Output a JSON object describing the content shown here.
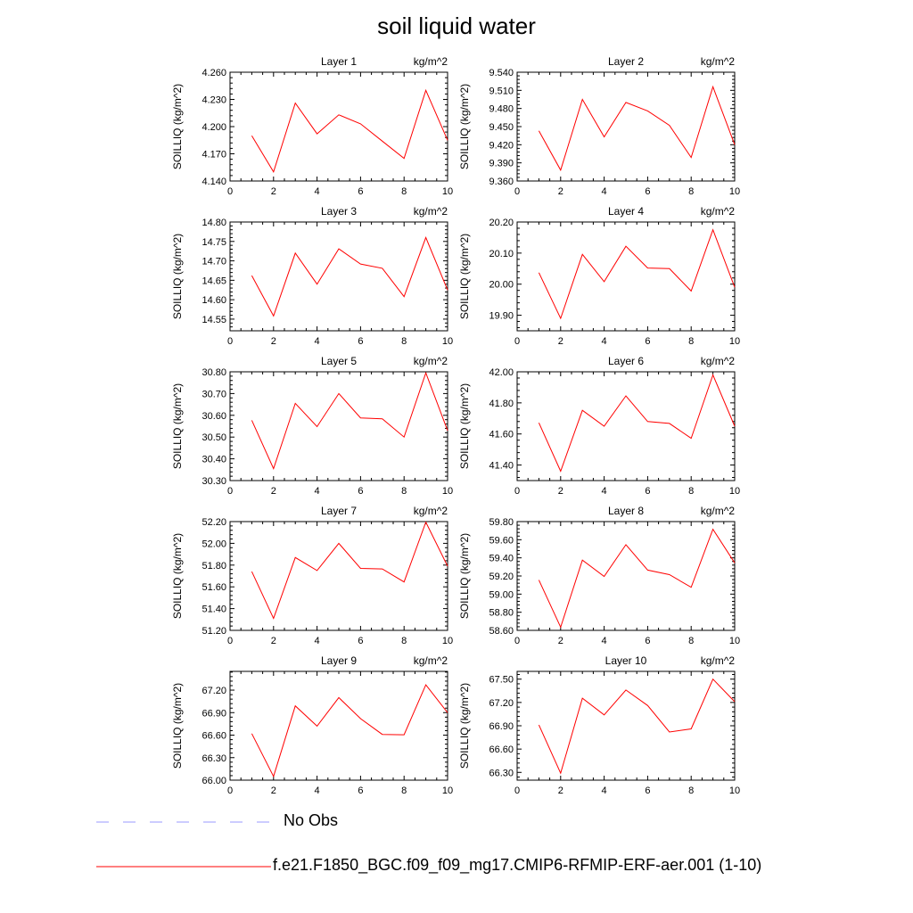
{
  "page": {
    "title": "soil liquid water"
  },
  "legend": [
    {
      "label": "No Obs",
      "color": "#9999ff",
      "dash": "dashed"
    },
    {
      "label": "f.e21.F1850_BGC.f09_f09_mg17.CMIP6-RFMIP-ERF-aer.001 (1-10)",
      "color": "#ff0000",
      "dash": "solid"
    }
  ],
  "chart_data": [
    {
      "type": "line",
      "title": "Layer 1",
      "units": "kg/m^2",
      "ylabel": "SOILLIQ  (kg/m^2)",
      "xlim": [
        0,
        10
      ],
      "ylim": [
        4.14,
        4.26
      ],
      "xticks": [
        "0",
        "2",
        "4",
        "6",
        "8",
        "10"
      ],
      "yticks": [
        "4.140",
        "4.170",
        "4.200",
        "4.230",
        "4.260"
      ],
      "x": [
        1,
        2,
        3,
        4,
        5,
        6,
        7,
        8,
        9,
        10
      ],
      "series": [
        {
          "values": [
            4.19,
            4.15,
            4.226,
            4.192,
            4.213,
            4.203,
            4.184,
            4.165,
            4.24,
            4.185
          ]
        }
      ]
    },
    {
      "type": "line",
      "title": "Layer 2",
      "units": "kg/m^2",
      "ylabel": "SOILLIQ  (kg/m^2)",
      "xlim": [
        0,
        10
      ],
      "ylim": [
        9.36,
        9.54
      ],
      "xticks": [
        "0",
        "2",
        "4",
        "6",
        "8",
        "10"
      ],
      "yticks": [
        "9.360",
        "9.390",
        "9.420",
        "9.450",
        "9.480",
        "9.510",
        "9.540"
      ],
      "x": [
        1,
        2,
        3,
        4,
        5,
        6,
        7,
        8,
        9,
        10
      ],
      "series": [
        {
          "values": [
            9.443,
            9.378,
            9.495,
            9.433,
            9.49,
            9.476,
            9.452,
            9.399,
            9.516,
            9.42
          ]
        }
      ]
    },
    {
      "type": "line",
      "title": "Layer 3",
      "units": "kg/m^2",
      "ylabel": "SOILLIQ  (kg/m^2)",
      "xlim": [
        0,
        10
      ],
      "ylim": [
        14.52,
        14.8
      ],
      "xticks": [
        "0",
        "2",
        "4",
        "6",
        "8",
        "10"
      ],
      "yticks": [
        "14.55",
        "14.60",
        "14.65",
        "14.70",
        "14.75",
        "14.80"
      ],
      "x": [
        1,
        2,
        3,
        4,
        5,
        6,
        7,
        8,
        9,
        10
      ],
      "series": [
        {
          "values": [
            14.662,
            14.558,
            14.72,
            14.64,
            14.731,
            14.692,
            14.681,
            14.608,
            14.76,
            14.625
          ]
        }
      ]
    },
    {
      "type": "line",
      "title": "Layer 4",
      "units": "kg/m^2",
      "ylabel": "SOILLIQ  (kg/m^2)",
      "xlim": [
        0,
        10
      ],
      "ylim": [
        19.85,
        20.2
      ],
      "xticks": [
        "0",
        "2",
        "4",
        "6",
        "8",
        "10"
      ],
      "yticks": [
        "19.90",
        "20.00",
        "20.10",
        "20.20"
      ],
      "x": [
        1,
        2,
        3,
        4,
        5,
        6,
        7,
        8,
        9,
        10
      ],
      "series": [
        {
          "values": [
            20.037,
            19.89,
            20.096,
            20.008,
            20.122,
            20.052,
            20.05,
            19.978,
            20.175,
            19.99
          ]
        }
      ]
    },
    {
      "type": "line",
      "title": "Layer 5",
      "units": "kg/m^2",
      "ylabel": "SOILLIQ  (kg/m^2)",
      "xlim": [
        0,
        10
      ],
      "ylim": [
        30.3,
        30.8
      ],
      "xticks": [
        "0",
        "2",
        "4",
        "6",
        "8",
        "10"
      ],
      "yticks": [
        "30.30",
        "30.40",
        "30.50",
        "30.60",
        "30.70",
        "30.80"
      ],
      "x": [
        1,
        2,
        3,
        4,
        5,
        6,
        7,
        8,
        9,
        10
      ],
      "series": [
        {
          "values": [
            30.577,
            30.355,
            30.655,
            30.548,
            30.7,
            30.588,
            30.584,
            30.5,
            30.795,
            30.53
          ]
        }
      ]
    },
    {
      "type": "line",
      "title": "Layer 6",
      "units": "kg/m^2",
      "ylabel": "SOILLIQ  (kg/m^2)",
      "xlim": [
        0,
        10
      ],
      "ylim": [
        41.3,
        42.0
      ],
      "xticks": [
        "0",
        "2",
        "4",
        "6",
        "8",
        "10"
      ],
      "yticks": [
        "41.40",
        "41.60",
        "41.80",
        "42.00"
      ],
      "x": [
        1,
        2,
        3,
        4,
        5,
        6,
        7,
        8,
        9,
        10
      ],
      "series": [
        {
          "values": [
            41.672,
            41.36,
            41.752,
            41.65,
            41.845,
            41.68,
            41.668,
            41.572,
            41.98,
            41.65
          ]
        }
      ]
    },
    {
      "type": "line",
      "title": "Layer 7",
      "units": "kg/m^2",
      "ylabel": "SOILLIQ  (kg/m^2)",
      "xlim": [
        0,
        10
      ],
      "ylim": [
        51.2,
        52.2
      ],
      "xticks": [
        "0",
        "2",
        "4",
        "6",
        "8",
        "10"
      ],
      "yticks": [
        "51.20",
        "51.40",
        "51.60",
        "51.80",
        "52.00",
        "52.20"
      ],
      "x": [
        1,
        2,
        3,
        4,
        5,
        6,
        7,
        8,
        9,
        10
      ],
      "series": [
        {
          "values": [
            51.74,
            51.31,
            51.87,
            51.75,
            52.0,
            51.77,
            51.765,
            51.645,
            52.195,
            51.79
          ]
        }
      ]
    },
    {
      "type": "line",
      "title": "Layer 8",
      "units": "kg/m^2",
      "ylabel": "SOILLIQ  (kg/m^2)",
      "xlim": [
        0,
        10
      ],
      "ylim": [
        58.6,
        59.8
      ],
      "xticks": [
        "0",
        "2",
        "4",
        "6",
        "8",
        "10"
      ],
      "yticks": [
        "58.60",
        "58.80",
        "59.00",
        "59.20",
        "59.40",
        "59.60",
        "59.80"
      ],
      "x": [
        1,
        2,
        3,
        4,
        5,
        6,
        7,
        8,
        9,
        10
      ],
      "series": [
        {
          "values": [
            59.155,
            58.635,
            59.375,
            59.195,
            59.545,
            59.265,
            59.215,
            59.075,
            59.715,
            59.345
          ]
        }
      ]
    },
    {
      "type": "line",
      "title": "Layer 9",
      "units": "kg/m^2",
      "ylabel": "SOILLIQ  (kg/m^2)",
      "xlim": [
        0,
        10
      ],
      "ylim": [
        66.0,
        67.45
      ],
      "xticks": [
        "0",
        "2",
        "4",
        "6",
        "8",
        "10"
      ],
      "yticks": [
        "66.00",
        "66.30",
        "66.60",
        "66.90",
        "67.20"
      ],
      "x": [
        1,
        2,
        3,
        4,
        5,
        6,
        7,
        8,
        9,
        10
      ],
      "series": [
        {
          "values": [
            66.62,
            66.05,
            66.99,
            66.72,
            67.1,
            66.82,
            66.61,
            66.605,
            67.27,
            66.9
          ]
        }
      ]
    },
    {
      "type": "line",
      "title": "Layer 10",
      "units": "kg/m^2",
      "ylabel": "SOILLIQ  (kg/m^2)",
      "xlim": [
        0,
        10
      ],
      "ylim": [
        66.2,
        67.6
      ],
      "xticks": [
        "0",
        "2",
        "4",
        "6",
        "8",
        "10"
      ],
      "yticks": [
        "66.30",
        "66.60",
        "66.90",
        "67.20",
        "67.50"
      ],
      "x": [
        1,
        2,
        3,
        4,
        5,
        6,
        7,
        8,
        9,
        10
      ],
      "series": [
        {
          "values": [
            66.91,
            66.29,
            67.255,
            67.04,
            67.36,
            67.16,
            66.82,
            66.86,
            67.5,
            67.21
          ]
        }
      ]
    }
  ]
}
